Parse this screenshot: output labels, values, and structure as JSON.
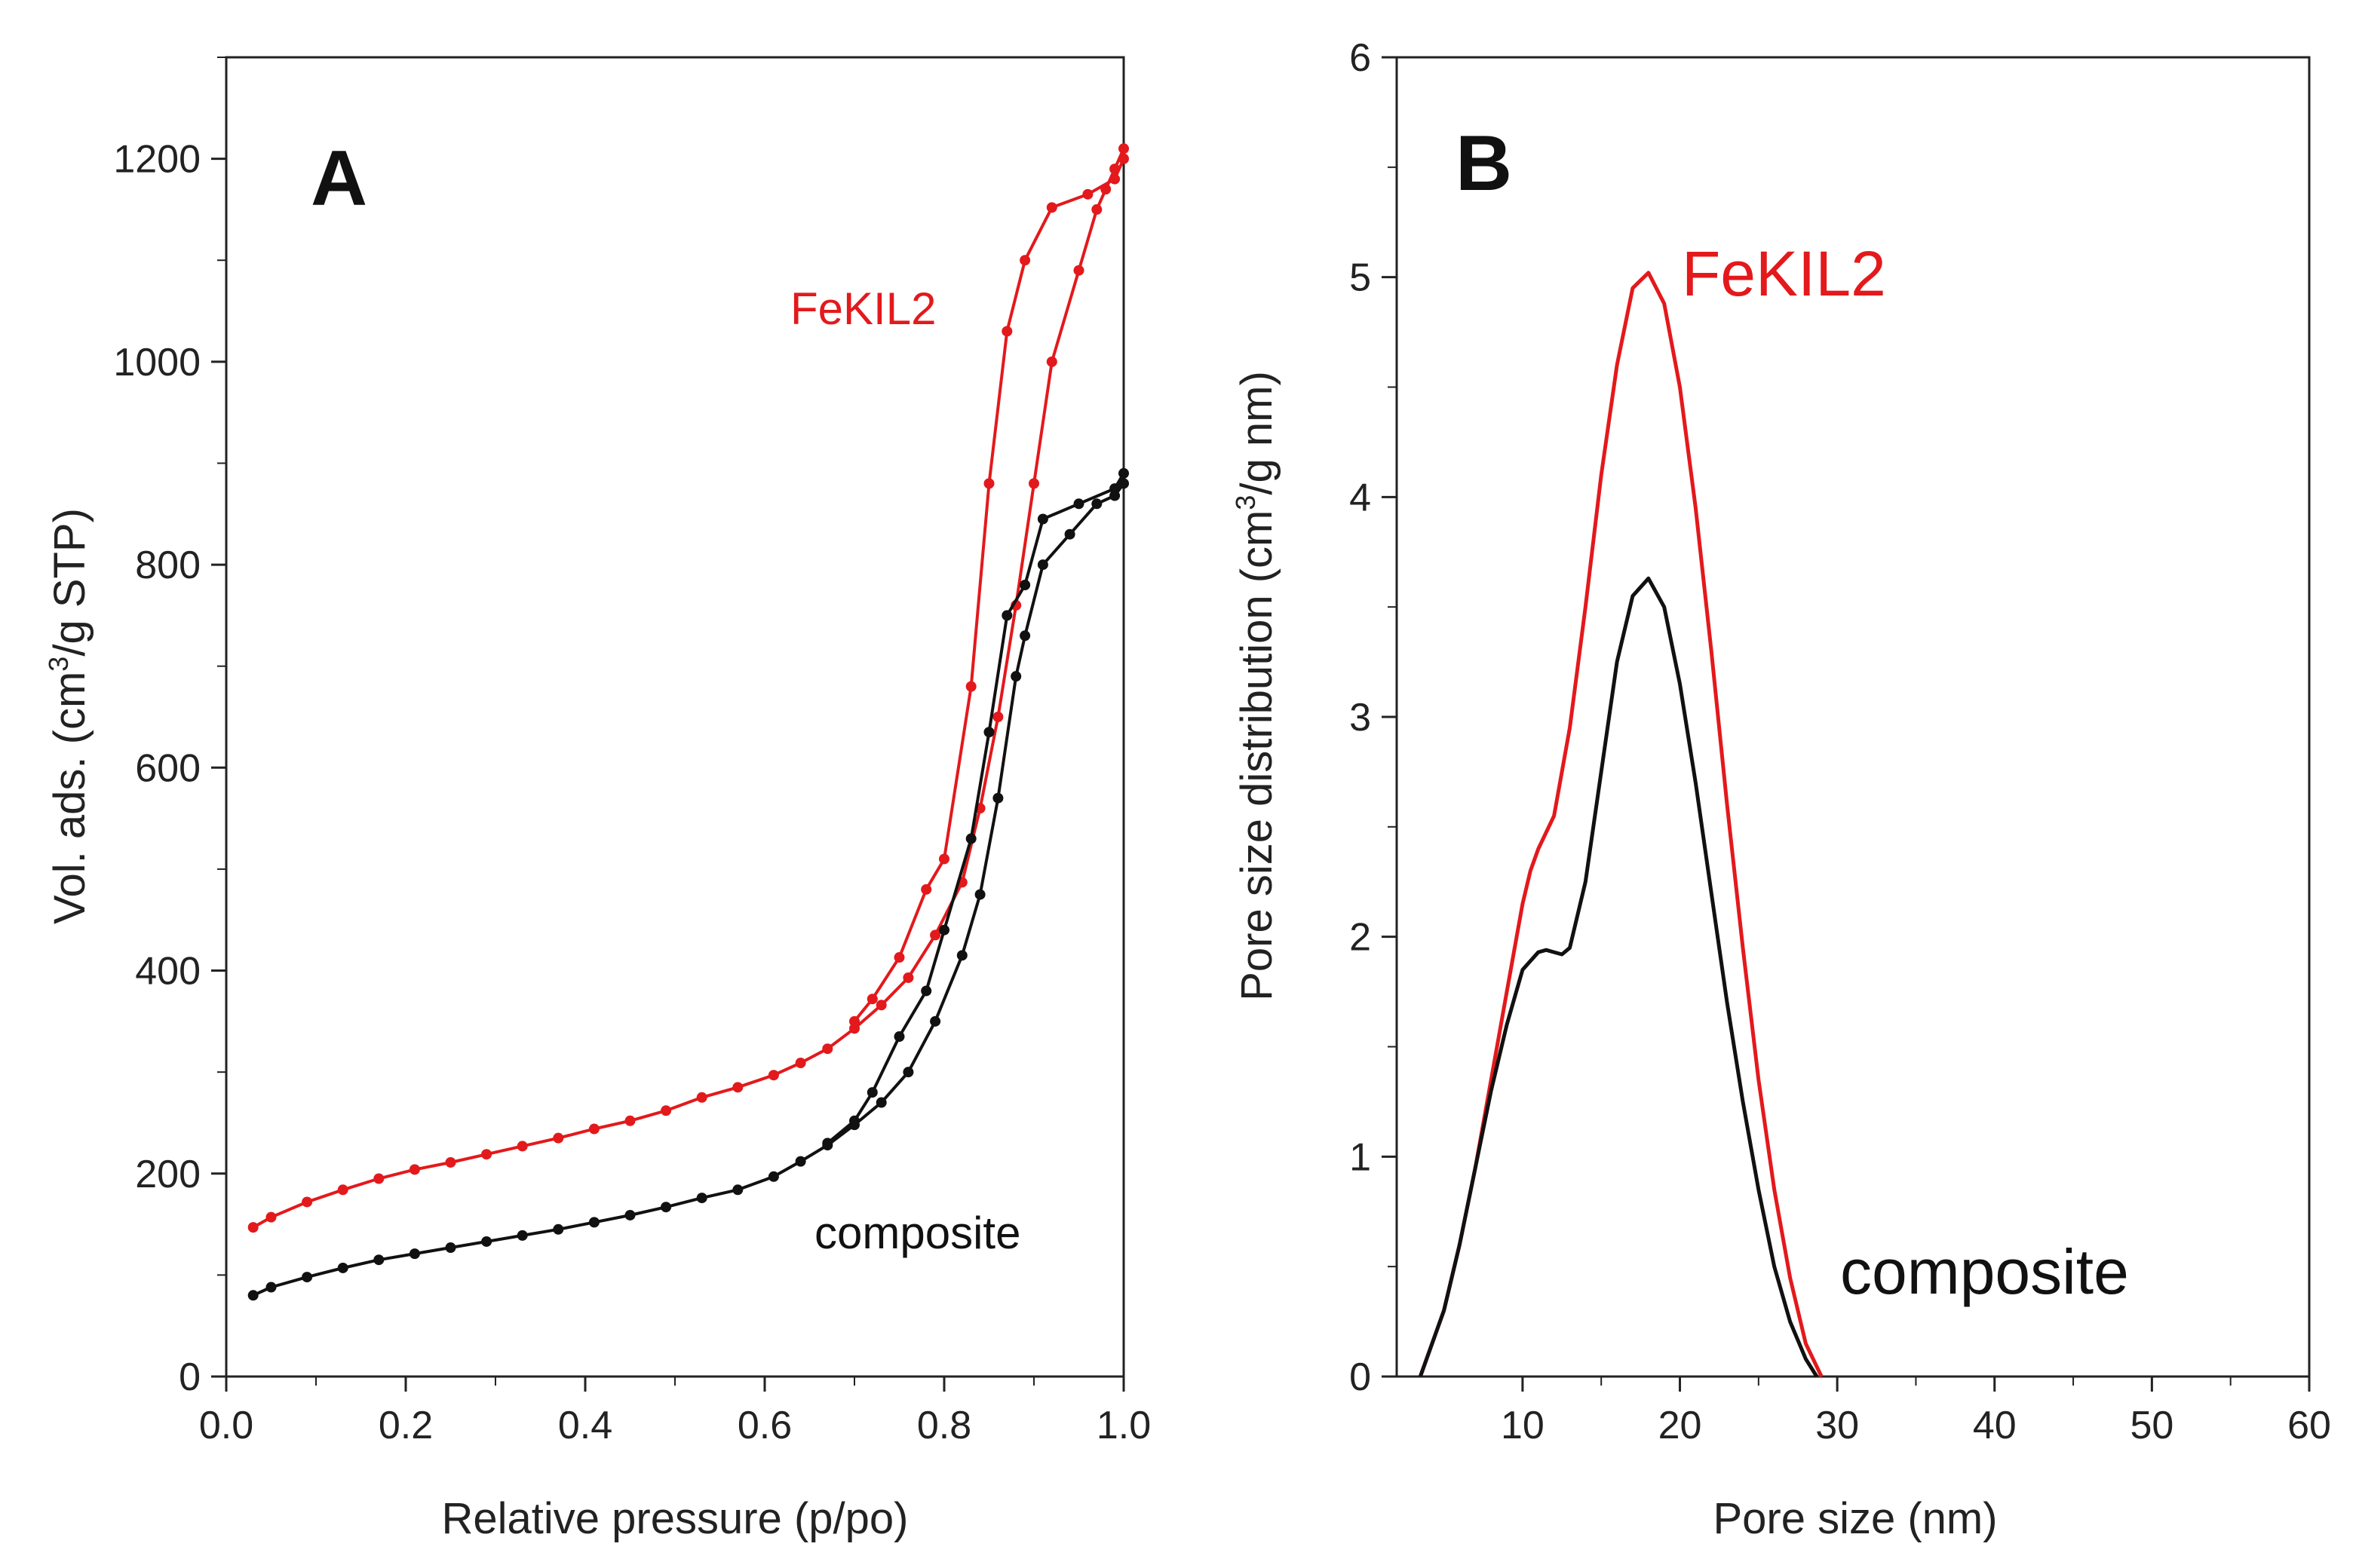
{
  "chart_data": [
    {
      "panel": "A",
      "type": "line",
      "title": "",
      "xlabel": "Relative pressure (p/po)",
      "ylabel_parts": [
        "Vol. ads. (cm",
        "3",
        "/g STP)"
      ],
      "xlim": [
        0.0,
        1.0
      ],
      "ylim": [
        0,
        1300
      ],
      "xticks": [
        0.0,
        0.2,
        0.4,
        0.6,
        0.8,
        1.0
      ],
      "xtick_labels": [
        "0.0",
        "0.2",
        "0.4",
        "0.6",
        "0.8",
        "1.0"
      ],
      "yticks": [
        0,
        200,
        400,
        600,
        800,
        1000,
        1200
      ],
      "ytick_labels": [
        "0",
        "200",
        "400",
        "600",
        "800",
        "1000",
        "1200"
      ],
      "grid": false,
      "series": [
        {
          "name": "FeKIL2",
          "color": "#e3191c",
          "branch": "adsorption",
          "x": [
            0.03,
            0.05,
            0.09,
            0.13,
            0.17,
            0.21,
            0.25,
            0.29,
            0.33,
            0.37,
            0.41,
            0.45,
            0.49,
            0.53,
            0.57,
            0.61,
            0.64,
            0.67,
            0.7,
            0.73,
            0.76,
            0.79,
            0.82,
            0.84,
            0.86,
            0.88,
            0.9,
            0.92,
            0.95,
            0.97,
            0.98,
            0.99,
            1.0
          ],
          "y": [
            147,
            157,
            172,
            184,
            195,
            204,
            211,
            219,
            227,
            235,
            244,
            252,
            262,
            275,
            285,
            297,
            309,
            323,
            343,
            366,
            393,
            435,
            487,
            560,
            650,
            760,
            880,
            1000,
            1090,
            1150,
            1170,
            1190,
            1210
          ]
        },
        {
          "name": "FeKIL2",
          "color": "#e3191c",
          "branch": "desorption",
          "x": [
            1.0,
            0.99,
            0.96,
            0.92,
            0.89,
            0.87,
            0.85,
            0.83,
            0.8,
            0.78,
            0.75,
            0.72,
            0.7
          ],
          "y": [
            1200,
            1180,
            1165,
            1152,
            1100,
            1030,
            880,
            680,
            510,
            480,
            413,
            372,
            350
          ]
        },
        {
          "name": "composite",
          "color": "#111111",
          "branch": "adsorption",
          "x": [
            0.03,
            0.05,
            0.09,
            0.13,
            0.17,
            0.21,
            0.25,
            0.29,
            0.33,
            0.37,
            0.41,
            0.45,
            0.49,
            0.53,
            0.57,
            0.61,
            0.64,
            0.67,
            0.7,
            0.73,
            0.76,
            0.79,
            0.82,
            0.84,
            0.86,
            0.88,
            0.89,
            0.91,
            0.94,
            0.97,
            0.99,
            1.0
          ],
          "y": [
            80,
            88,
            98,
            107,
            115,
            121,
            127,
            133,
            139,
            145,
            152,
            159,
            167,
            176,
            184,
            197,
            212,
            228,
            248,
            270,
            300,
            350,
            415,
            475,
            570,
            690,
            730,
            800,
            830,
            860,
            868,
            880
          ]
        },
        {
          "name": "composite",
          "color": "#111111",
          "branch": "desorption",
          "x": [
            1.0,
            0.99,
            0.95,
            0.91,
            0.89,
            0.87,
            0.85,
            0.83,
            0.8,
            0.78,
            0.75,
            0.72,
            0.7,
            0.67
          ],
          "y": [
            890,
            875,
            860,
            845,
            780,
            750,
            635,
            530,
            440,
            380,
            335,
            280,
            252,
            230
          ]
        }
      ],
      "annotations": [
        {
          "text": "A",
          "role": "panel-letter"
        },
        {
          "text": "FeKIL2",
          "color": "#e3191c"
        },
        {
          "text": "composite",
          "color": "#111111"
        }
      ]
    },
    {
      "panel": "B",
      "type": "line",
      "title": "",
      "xlabel": "Pore size (nm)",
      "ylabel_parts": [
        "Pore size distribution (cm",
        "3",
        "/g nm)"
      ],
      "xlim": [
        2,
        60
      ],
      "ylim": [
        0,
        6
      ],
      "xticks": [
        10,
        20,
        30,
        40,
        50,
        60
      ],
      "xtick_labels": [
        "10",
        "20",
        "30",
        "40",
        "50",
        "60"
      ],
      "yticks": [
        0,
        1,
        2,
        3,
        4,
        5,
        6
      ],
      "ytick_labels": [
        "0",
        "1",
        "2",
        "3",
        "4",
        "5",
        "6"
      ],
      "grid": false,
      "series": [
        {
          "name": "FeKIL2",
          "color": "#e3191c",
          "x": [
            3.5,
            5,
            6,
            7,
            8,
            9,
            10,
            10.5,
            11,
            12,
            13,
            14,
            15,
            16,
            17,
            18,
            19,
            20,
            21,
            22,
            23,
            24,
            25,
            26,
            27,
            28,
            29
          ],
          "y": [
            0,
            0.3,
            0.6,
            0.95,
            1.35,
            1.75,
            2.15,
            2.3,
            2.4,
            2.55,
            2.95,
            3.5,
            4.1,
            4.6,
            4.95,
            5.02,
            4.88,
            4.5,
            3.95,
            3.3,
            2.6,
            1.95,
            1.35,
            0.85,
            0.45,
            0.15,
            0
          ]
        },
        {
          "name": "composite",
          "color": "#111111",
          "x": [
            3.5,
            5,
            6,
            7,
            8,
            9,
            10,
            11,
            11.5,
            12,
            12.5,
            13,
            14,
            15,
            16,
            17,
            18,
            19,
            20,
            21,
            22,
            23,
            24,
            25,
            26,
            27,
            28,
            28.7
          ],
          "y": [
            0,
            0.3,
            0.6,
            0.95,
            1.3,
            1.6,
            1.85,
            1.93,
            1.94,
            1.93,
            1.92,
            1.95,
            2.25,
            2.75,
            3.25,
            3.55,
            3.63,
            3.5,
            3.15,
            2.7,
            2.2,
            1.7,
            1.25,
            0.85,
            0.5,
            0.25,
            0.08,
            0
          ]
        }
      ],
      "annotations": [
        {
          "text": "B",
          "role": "panel-letter"
        },
        {
          "text": "FeKIL2",
          "color": "#e3191c"
        },
        {
          "text": "composite",
          "color": "#111111"
        }
      ]
    }
  ]
}
